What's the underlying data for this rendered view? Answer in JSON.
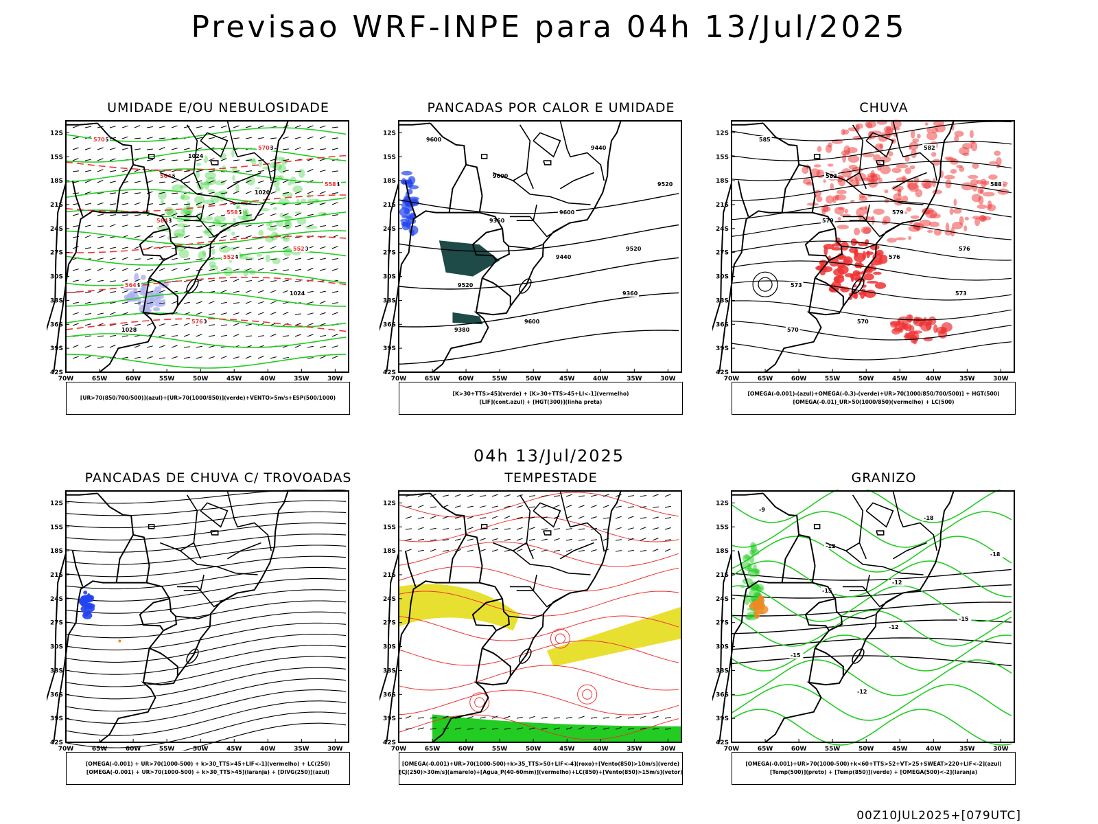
{
  "header": {
    "title": "Previsao WRF-INPE  para 04h 13/Jul/2025",
    "middle_date": "04h 13/Jul/2025",
    "footer_stamp": "00Z10JUL2025+[079UTC]"
  },
  "axes": {
    "lat_labels": [
      "12S",
      "15S",
      "18S",
      "21S",
      "24S",
      "27S",
      "30S",
      "33S",
      "36S",
      "39S",
      "42S"
    ],
    "lon_labels": [
      "70W",
      "65W",
      "60W",
      "55W",
      "50W",
      "45W",
      "40W",
      "35W",
      "30W"
    ]
  },
  "colors": {
    "green": "#22cc22",
    "red": "#ee3333",
    "blue": "#2244ee",
    "lavender": "#aab0ee",
    "yellow": "#e8e030",
    "darkteal": "#1e4a48",
    "orange": "#ee8822"
  },
  "panels": [
    {
      "id": "umidade",
      "title": "UMIDADE E/OU NEBULOSIDADE",
      "legend": [
        "[UR>70(850/700/500)](azul)+[UR>70(1000/850)](verde)+VENTO>5m/s+ESP(500/1000)"
      ],
      "contour_labels": [
        "1016",
        "1016",
        "1015",
        "1020",
        "1024",
        "1020",
        "1028",
        "1024",
        "1028",
        "1024",
        "1024",
        "1028",
        "1024",
        "1020"
      ],
      "red_labels": [
        "570",
        "564",
        "558",
        "552",
        "564",
        "576",
        "570",
        "558",
        "564",
        "552"
      ]
    },
    {
      "id": "pancadas-calor",
      "title": "PANCADAS POR CALOR E UMIDADE",
      "legend": [
        "[K>30+TTS>45](verde) + [K>30+TTS>45+LI<-1](vermelho)",
        "[LIF](cont.azul) + [HGT(300)](linha preta)"
      ],
      "contour_labels": [
        "9600",
        "9600",
        "9600",
        "9520",
        "9520",
        "9600",
        "9440",
        "9520",
        "9360",
        "9440",
        "9360",
        "9380"
      ]
    },
    {
      "id": "chuva",
      "title": "CHUVA",
      "legend": [
        "[OMEGA(-0.001)-(azul)+OMEGA(-0.3)-(verde)+UR>70(1000/850/700/500)] + HGT(500)",
        "[OMEGA(-0.01)_UR>50(1000/850)(vermelho) + LC(500)"
      ],
      "contour_labels": [
        "585",
        "582",
        "579",
        "576",
        "573",
        "570",
        "582",
        "588",
        "579",
        "576",
        "573",
        "570"
      ]
    },
    {
      "id": "pancadas-trovoadas",
      "title": "PANCADAS DE CHUVA C/ TROVOADAS",
      "legend": [
        "[OMEGA(-0.001) + UR>70(1000-500) + k>30_TTS>45+LIF<-1](vermelho) + LC(250)",
        "[OMEGA(-0.001) + UR>70(1000-500) + k>30_TTS>45](laranja) + [DIVG(250)](azul)"
      ]
    },
    {
      "id": "tempestade",
      "title": "TEMPESTADE",
      "legend": [
        "[OMEGA(-0.001)+UR>70(1000-500)+k>35_TTS>50+LIF<-4](roxo)+[Vento(850)>10m/s](verde)",
        "[CJ(250)>30m/s](amarelo)+[Agua_P(40-60mm)](vermelho)+LC(850)+[Vento(850)>15m/s](vetor)"
      ]
    },
    {
      "id": "granizo",
      "title": "GRANIZO",
      "legend": [
        "[OMEGA(-0.001)+UR>70(1000-500)+k<60+TTS>52+VT>25+SWEAT>220+LIF<-2](azul)",
        "[Temp(500)](preto) + [Temp(850)](verde) + [OMEGA(500)<-2](laranja)"
      ],
      "contour_labels": [
        "-9",
        "-12",
        "-12",
        "-15",
        "-15",
        "-12",
        "-18",
        "-18",
        "-15",
        "-12"
      ]
    }
  ]
}
